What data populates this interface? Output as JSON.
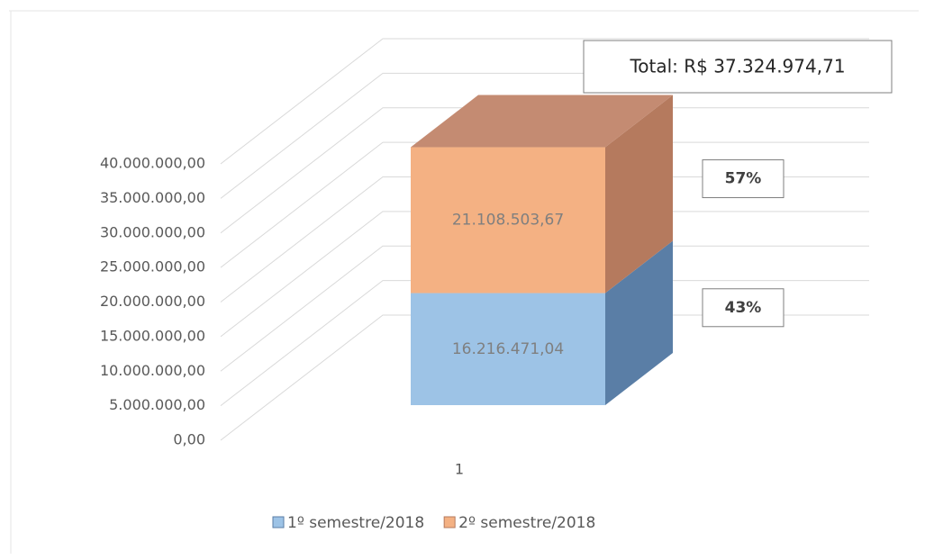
{
  "chart_data": {
    "type": "bar3d_stacked",
    "categories": [
      "1"
    ],
    "series": [
      {
        "name": "1º semestre/2018",
        "color": "#9dc3e6",
        "side": "#5a7ea6",
        "top": "#7ea3cc",
        "values": [
          16216471.04
        ],
        "value_labels": [
          "16.216.471,04"
        ],
        "percent_label": "43%"
      },
      {
        "name": "2º semestre/2018",
        "color": "#f4b183",
        "side": "#b57a5e",
        "top": "#c48b72",
        "values": [
          21108503.67
        ],
        "value_labels": [
          "21.108.503,67"
        ],
        "percent_label": "57%"
      }
    ],
    "annotation": "Total: R$ 37.324.974,71",
    "ylim": [
      0,
      40000000
    ],
    "yticks": [
      {
        "value": 0,
        "label": "0,00"
      },
      {
        "value": 5000000,
        "label": "5.000.000,00"
      },
      {
        "value": 10000000,
        "label": "10.000.000,00"
      },
      {
        "value": 15000000,
        "label": "15.000.000,00"
      },
      {
        "value": 20000000,
        "label": "20.000.000,00"
      },
      {
        "value": 25000000,
        "label": "25.000.000,00"
      },
      {
        "value": 30000000,
        "label": "30.000.000,00"
      },
      {
        "value": 35000000,
        "label": "35.000.000,00"
      },
      {
        "value": 40000000,
        "label": "40.000.000,00"
      }
    ],
    "grid": true,
    "legend": "bottom"
  }
}
